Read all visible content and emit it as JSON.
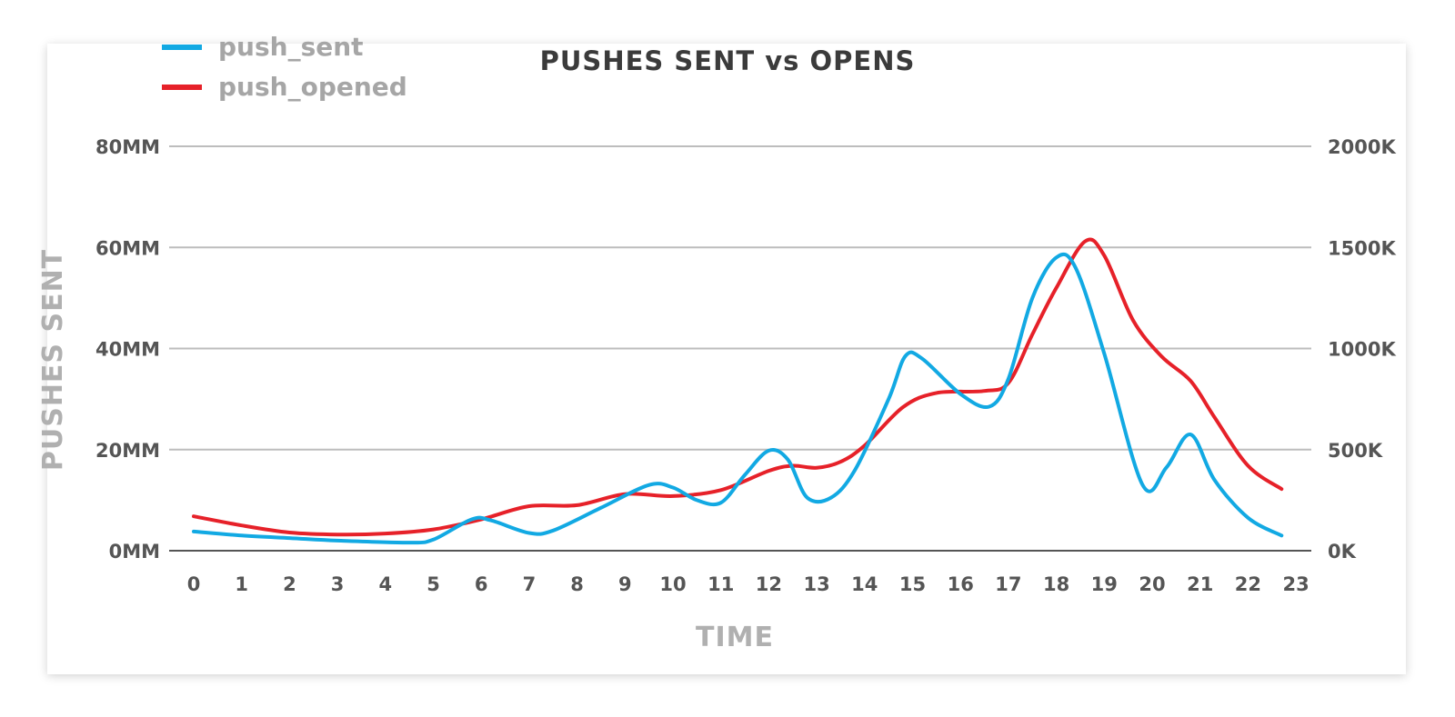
{
  "chart_data": {
    "type": "line",
    "title": "PUSHES SENT vs OPENS",
    "xlabel": "TIME",
    "ylabel": "PUSHES SENT",
    "x_ticks": [
      "0",
      "1",
      "2",
      "3",
      "4",
      "5",
      "6",
      "7",
      "8",
      "9",
      "10",
      "11",
      "12",
      "13",
      "14",
      "15",
      "16",
      "17",
      "18",
      "19",
      "20",
      "21",
      "22",
      "23"
    ],
    "y_left": {
      "min": 0,
      "max": 80,
      "ticks": [
        {
          "value": 0,
          "label": "0MM"
        },
        {
          "value": 20,
          "label": "20MM"
        },
        {
          "value": 40,
          "label": "40MM"
        },
        {
          "value": 60,
          "label": "60MM"
        },
        {
          "value": 80,
          "label": "80MM"
        }
      ]
    },
    "y_right": {
      "min": 0,
      "max": 2000,
      "ticks": [
        {
          "value": 0,
          "label": "0K"
        },
        {
          "value": 500,
          "label": "500K"
        },
        {
          "value": 1000,
          "label": "1000K"
        },
        {
          "value": 1500,
          "label": "1500K"
        },
        {
          "value": 2000,
          "label": "2000K"
        }
      ]
    },
    "grid": true,
    "legend": "top-left",
    "series": [
      {
        "name": "push_sent",
        "axis": "left",
        "color": "#12a9e3",
        "points": [
          [
            0,
            3.8
          ],
          [
            1,
            3.0
          ],
          [
            2,
            2.5
          ],
          [
            3,
            2.0
          ],
          [
            4.5,
            1.6
          ],
          [
            5,
            2.2
          ],
          [
            5.8,
            6.2
          ],
          [
            6.2,
            6.0
          ],
          [
            7,
            3.5
          ],
          [
            7.5,
            4.0
          ],
          [
            8.5,
            8.5
          ],
          [
            9.5,
            13.0
          ],
          [
            10,
            12.5
          ],
          [
            10.5,
            10.0
          ],
          [
            11,
            9.5
          ],
          [
            11.5,
            15.0
          ],
          [
            12,
            19.8
          ],
          [
            12.4,
            18.0
          ],
          [
            12.8,
            10.5
          ],
          [
            13.3,
            10.5
          ],
          [
            13.8,
            16.0
          ],
          [
            14.5,
            30.0
          ],
          [
            14.85,
            38.5
          ],
          [
            15.2,
            38.0
          ],
          [
            16,
            31.0
          ],
          [
            16.6,
            28.5
          ],
          [
            17,
            34.0
          ],
          [
            17.5,
            50.0
          ],
          [
            18,
            58.0
          ],
          [
            18.4,
            56.0
          ],
          [
            19,
            39.0
          ],
          [
            19.8,
            13.0
          ],
          [
            20.3,
            16.5
          ],
          [
            20.8,
            23.0
          ],
          [
            21.3,
            14.0
          ],
          [
            22,
            6.5
          ],
          [
            22.7,
            3.0
          ]
        ]
      },
      {
        "name": "push_opened",
        "axis": "right",
        "color": "#e62129",
        "points": [
          [
            0,
            170
          ],
          [
            1,
            125
          ],
          [
            2,
            90
          ],
          [
            3,
            80
          ],
          [
            4,
            85
          ],
          [
            5,
            105
          ],
          [
            6,
            155
          ],
          [
            7,
            220
          ],
          [
            8,
            225
          ],
          [
            9,
            280
          ],
          [
            10,
            270
          ],
          [
            11,
            300
          ],
          [
            12,
            395
          ],
          [
            12.5,
            420
          ],
          [
            13,
            410
          ],
          [
            13.5,
            440
          ],
          [
            14,
            520
          ],
          [
            14.8,
            710
          ],
          [
            15.5,
            780
          ],
          [
            16.5,
            790
          ],
          [
            17,
            830
          ],
          [
            17.5,
            1070
          ],
          [
            18,
            1300
          ],
          [
            18.6,
            1530
          ],
          [
            19,
            1460
          ],
          [
            19.6,
            1140
          ],
          [
            20.2,
            960
          ],
          [
            20.8,
            840
          ],
          [
            21.3,
            660
          ],
          [
            22,
            420
          ],
          [
            22.7,
            305
          ]
        ]
      }
    ]
  }
}
